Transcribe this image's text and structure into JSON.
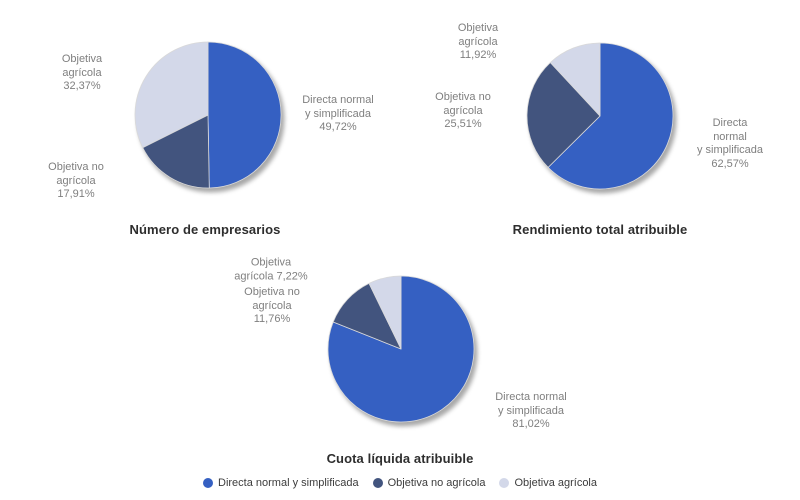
{
  "page": {
    "background": "#ffffff"
  },
  "series_colors": {
    "directa_normal_y_simplificada": "#3560C2",
    "objetiva_no_agricola": "#42547E",
    "objetiva_agricola": "#D3D8E9"
  },
  "shadow_color": "#a8a8a8",
  "label_color": "#7f7f7f",
  "charts": [
    {
      "title": "Número de empresarios",
      "slice_labels": {
        "directa": "Directa normal\ny simplificada\n49,72%",
        "objetiva_agricola": "Objetiva\nagrícola\n32,37%",
        "objetiva_no_agricola": "Objetiva no\nagrícola\n17,91%"
      }
    },
    {
      "title": "Rendimiento total atribuible",
      "slice_labels": {
        "directa": "Directa normal\ny simplificada\n62,57%",
        "objetiva_agricola": "Objetiva\nagrícola\n11,92%",
        "objetiva_no_agricola": "Objetiva no\nagrícola\n25,51%"
      }
    },
    {
      "title": "Cuota líquida atribuible",
      "slice_labels": {
        "directa": "Directa normal\ny simplificada\n81,02%",
        "objetiva_agricola": "Objetiva\nagrícola 7,22%",
        "objetiva_no_agricola": "Objetiva no\nagrícola\n11,76%"
      }
    }
  ],
  "legend": {
    "items": [
      {
        "label": "Directa normal y simplificada",
        "color": "#3560C2"
      },
      {
        "label": "Objetiva no agrícola",
        "color": "#42547E"
      },
      {
        "label": "Objetiva agrícola",
        "color": "#D3D8E9"
      }
    ]
  },
  "chart_data": [
    {
      "type": "pie",
      "title": "Número de empresarios",
      "labels": [
        "Directa normal y simplificada",
        "Objetiva no agrícola",
        "Objetiva agrícola"
      ],
      "values": [
        49.72,
        17.91,
        32.37
      ],
      "colors": [
        "#3560C2",
        "#42547E",
        "#D3D8E9"
      ],
      "start_angle_deg": 0,
      "direction": "clockwise",
      "legend_position": "bottom-shared"
    },
    {
      "type": "pie",
      "title": "Rendimiento total atribuible",
      "labels": [
        "Directa normal y simplificada",
        "Objetiva no agrícola",
        "Objetiva agrícola"
      ],
      "values": [
        62.57,
        25.51,
        11.92
      ],
      "colors": [
        "#3560C2",
        "#42547E",
        "#D3D8E9"
      ],
      "start_angle_deg": 0,
      "direction": "clockwise",
      "legend_position": "bottom-shared"
    },
    {
      "type": "pie",
      "title": "Cuota líquida atribuible",
      "labels": [
        "Directa normal y simplificada",
        "Objetiva no agrícola",
        "Objetiva agrícola"
      ],
      "values": [
        81.02,
        11.76,
        7.22
      ],
      "colors": [
        "#3560C2",
        "#42547E",
        "#D3D8E9"
      ],
      "start_angle_deg": 0,
      "direction": "clockwise",
      "legend_position": "bottom-shared"
    }
  ]
}
